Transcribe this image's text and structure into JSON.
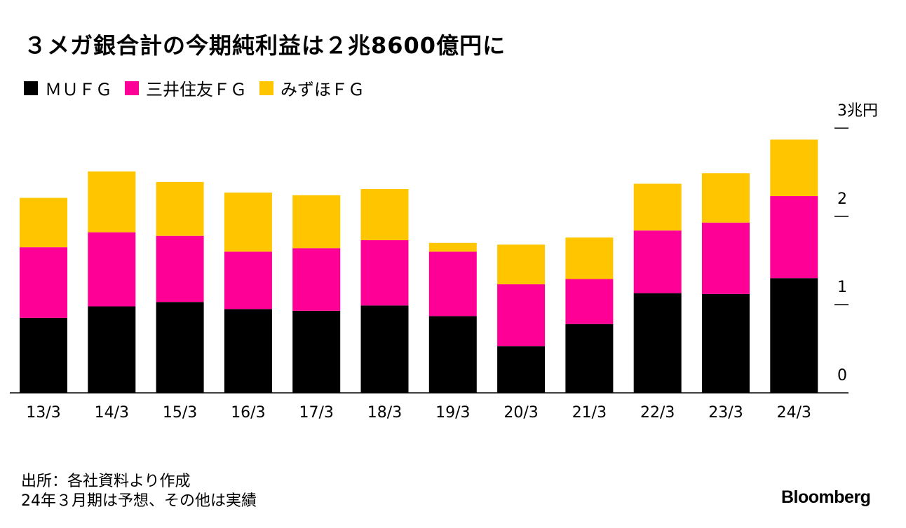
{
  "title": "３メガ銀合計の今期純利益は２兆8600億円に",
  "legend": [
    {
      "label": "ＭＵＦＧ",
      "color": "#000000"
    },
    {
      "label": "三井住友ＦＧ",
      "color": "#ff0096"
    },
    {
      "label": "みずほＦＧ",
      "color": "#ffc600"
    }
  ],
  "chart_data": {
    "type": "bar",
    "stacked": true,
    "categories": [
      "13/3",
      "14/3",
      "15/3",
      "16/3",
      "17/3",
      "18/3",
      "19/3",
      "20/3",
      "21/3",
      "22/3",
      "23/3",
      "24/3"
    ],
    "series": [
      {
        "name": "ＭＵＦＧ",
        "color": "#000000",
        "values": [
          0.85,
          0.98,
          1.03,
          0.95,
          0.93,
          0.99,
          0.87,
          0.53,
          0.78,
          1.13,
          1.12,
          1.3
        ]
      },
      {
        "name": "三井住友ＦＧ",
        "color": "#ff0096",
        "values": [
          0.8,
          0.84,
          0.75,
          0.65,
          0.71,
          0.74,
          0.73,
          0.7,
          0.51,
          0.71,
          0.81,
          0.93
        ]
      },
      {
        "name": "みずほＦＧ",
        "color": "#ffc600",
        "values": [
          0.56,
          0.69,
          0.61,
          0.67,
          0.6,
          0.58,
          0.1,
          0.45,
          0.47,
          0.53,
          0.56,
          0.64
        ]
      }
    ],
    "y_ticks": [
      {
        "value": 0,
        "label": "0"
      },
      {
        "value": 1,
        "label": "1"
      },
      {
        "value": 2,
        "label": "2"
      },
      {
        "value": 3,
        "label": "3兆円"
      }
    ],
    "ylim": [
      0,
      3
    ],
    "xlabel": "",
    "ylabel": "",
    "grid": false,
    "legend_position": "top-left"
  },
  "footer": {
    "source": "出所：各社資料より作成",
    "note": "24年３月期は予想、その他は実績"
  },
  "brand": "Bloomberg"
}
